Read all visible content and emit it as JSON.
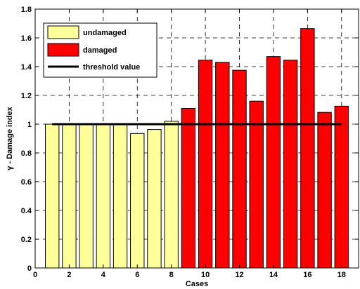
{
  "chart_data": {
    "type": "bar",
    "xlabel": "Cases",
    "ylabel": "γ - Damage index",
    "xlim": [
      0,
      19
    ],
    "ylim": [
      0,
      1.8
    ],
    "xticks": [
      0,
      2,
      4,
      6,
      8,
      10,
      12,
      14,
      16,
      18
    ],
    "yticks": [
      0,
      0.2,
      0.4,
      0.6,
      0.8,
      1,
      1.2,
      1.4,
      1.6,
      1.8
    ],
    "grid": true,
    "legend_position": "top-left",
    "x": [
      1,
      2,
      3,
      4,
      5,
      6,
      7,
      8,
      9,
      10,
      11,
      12,
      13,
      14,
      15,
      16,
      17,
      18
    ],
    "series": [
      {
        "name": "undamaged",
        "color": "#ffff99",
        "x": [
          1,
          2,
          3,
          4,
          5,
          6,
          7,
          8
        ],
        "values": [
          1.0,
          1.0,
          1.0,
          1.0,
          1.0,
          0.935,
          0.963,
          1.02
        ]
      },
      {
        "name": "damaged",
        "color": "#ff0000",
        "x": [
          9,
          10,
          11,
          12,
          13,
          14,
          15,
          16,
          17,
          18
        ],
        "values": [
          1.11,
          1.445,
          1.43,
          1.375,
          1.16,
          1.47,
          1.445,
          1.665,
          1.082,
          1.125
        ]
      }
    ],
    "threshold": {
      "name": "threshold value",
      "value": 1.0,
      "x_range": [
        1,
        18
      ],
      "color": "#000000"
    }
  }
}
